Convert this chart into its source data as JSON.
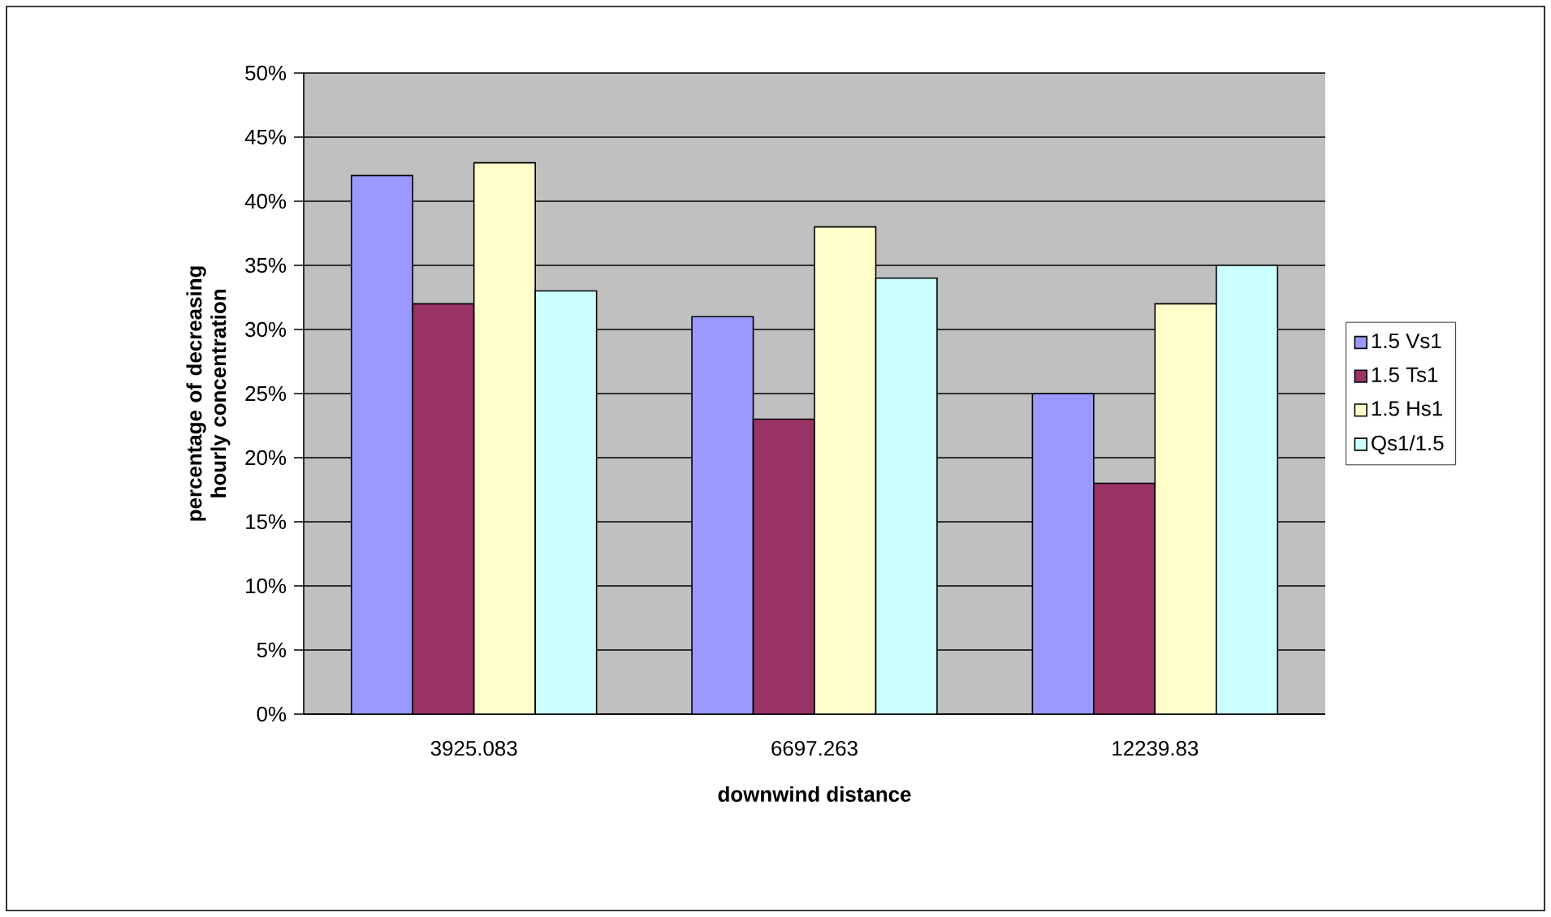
{
  "chart_data": {
    "type": "bar",
    "xlabel": "downwind distance",
    "ylabel": "percentage of decreasing hourly concentration",
    "categories": [
      "3925.083",
      "6697.263",
      "12239.83"
    ],
    "series": [
      {
        "name": "1.5 Vs1",
        "color": "#9999ff",
        "values": [
          42,
          31,
          25
        ]
      },
      {
        "name": "1.5 Ts1",
        "color": "#993366",
        "values": [
          32,
          23,
          18
        ]
      },
      {
        "name": "1.5 Hs1",
        "color": "#ffffcc",
        "values": [
          43,
          38,
          32
        ]
      },
      {
        "name": "Qs1/1.5",
        "color": "#ccffff",
        "values": [
          33,
          34,
          35
        ]
      }
    ],
    "ylim": [
      0,
      50
    ],
    "yticks": [
      {
        "value": 0,
        "label": "0%"
      },
      {
        "value": 5,
        "label": "5%"
      },
      {
        "value": 10,
        "label": "10%"
      },
      {
        "value": 15,
        "label": "15%"
      },
      {
        "value": 20,
        "label": "20%"
      },
      {
        "value": 25,
        "label": "25%"
      },
      {
        "value": 30,
        "label": "30%"
      },
      {
        "value": 35,
        "label": "35%"
      },
      {
        "value": 40,
        "label": "40%"
      },
      {
        "value": 45,
        "label": "45%"
      },
      {
        "value": 50,
        "label": "50%"
      }
    ],
    "grid": "y",
    "legend": "right"
  }
}
